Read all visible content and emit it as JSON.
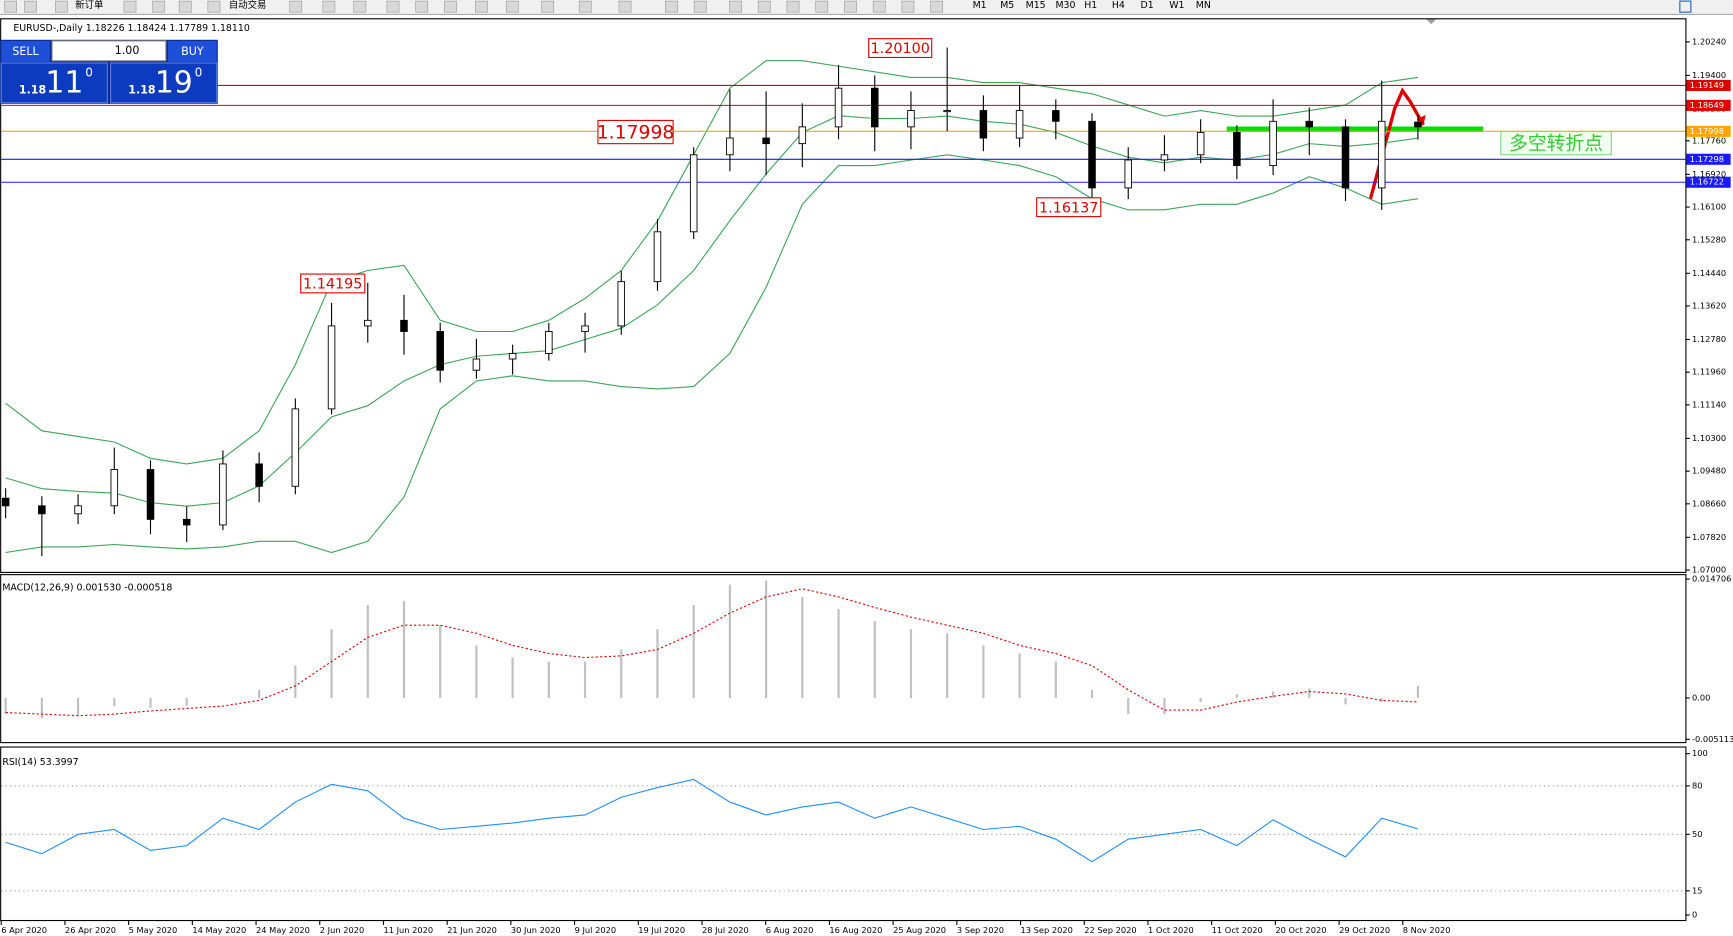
{
  "toolbar": {
    "order": "新订单",
    "auto": "自动交易",
    "timeframes": [
      "M1",
      "M5",
      "M15",
      "M30",
      "H1",
      "H4",
      "D1",
      "W1",
      "MN"
    ]
  },
  "trade_panel": {
    "sell": "SELL",
    "buy": "BUY",
    "lot": "1.00",
    "sell_price": {
      "prefix": "1.18",
      "big": "11",
      "sup": "0"
    },
    "buy_price": {
      "prefix": "1.18",
      "big": "19",
      "sup": "0"
    }
  },
  "chart_data": [
    {
      "type": "candlestick",
      "title": "EURUSD-,Daily  1.18226 1.18424 1.17789 1.18110",
      "ylim": [
        1.0694,
        1.2082
      ],
      "yticks": [
        {
          "value": 1.2024,
          "label": "1.20240"
        },
        {
          "value": 1.194,
          "label": "1.19400"
        },
        {
          "value": 1.1856,
          "label": "1.18560"
        },
        {
          "value": 1.1776,
          "label": "1.17760"
        },
        {
          "value": 1.1692,
          "label": "1.16920"
        },
        {
          "value": 1.161,
          "label": "1.16100"
        },
        {
          "value": 1.1528,
          "label": "1.15280"
        },
        {
          "value": 1.1444,
          "label": "1.14440"
        },
        {
          "value": 1.1362,
          "label": "1.13620"
        },
        {
          "value": 1.1278,
          "label": "1.12780"
        },
        {
          "value": 1.1196,
          "label": "1.11960"
        },
        {
          "value": 1.1114,
          "label": "1.11140"
        },
        {
          "value": 1.103,
          "label": "1.10300"
        },
        {
          "value": 1.0948,
          "label": "1.09480"
        },
        {
          "value": 1.0866,
          "label": "1.08660"
        },
        {
          "value": 1.0782,
          "label": "1.07820"
        },
        {
          "value": 1.07,
          "label": "1.07000"
        }
      ],
      "date_labels": [
        "6 Apr 2020",
        "26 Apr 2020",
        "5 May 2020",
        "14 May 2020",
        "24 May 2020",
        "2 Jun 2020",
        "11 Jun 2020",
        "21 Jun 2020",
        "30 Jun 2020",
        "9 Jul 2020",
        "19 Jul 2020",
        "28 Jul 2020",
        "6 Aug 2020",
        "16 Aug 2020",
        "25 Aug 2020",
        "3 Sep 2020",
        "13 Sep 2020",
        "22 Sep 2020",
        "1 Oct 2020",
        "11 Oct 2020",
        "20 Oct 2020",
        "29 Oct 2020",
        "8 Nov 2020"
      ],
      "open": [
        1.088,
        1.0861,
        1.0841,
        1.0861,
        1.0952,
        1.0827,
        1.0813,
        1.0966,
        1.091,
        1.1104,
        1.1312,
        1.1326,
        1.1298,
        1.1201,
        1.1229,
        1.1243,
        1.1298,
        1.1312,
        1.1423,
        1.1548,
        1.1741,
        1.1783,
        1.1769,
        1.1811,
        1.1908,
        1.1811,
        1.1852,
        1.1852,
        1.1783,
        1.1852,
        1.1825,
        1.1658,
        1.1728,
        1.1741,
        1.1797,
        1.1714,
        1.1825,
        1.1811,
        1.1658,
        1.1823
      ],
      "high": [
        1.0905,
        1.0885,
        1.089,
        1.1007,
        1.0975,
        1.086,
        1.1,
        1.0995,
        1.113,
        1.137,
        1.142,
        1.139,
        1.132,
        1.128,
        1.1265,
        1.132,
        1.1345,
        1.145,
        1.158,
        1.176,
        1.1905,
        1.19,
        1.187,
        1.1966,
        1.194,
        1.19,
        1.201,
        1.189,
        1.1915,
        1.188,
        1.1845,
        1.176,
        1.179,
        1.183,
        1.1815,
        1.188,
        1.186,
        1.183,
        1.1927,
        1.1842
      ],
      "low": [
        1.083,
        1.0735,
        1.0815,
        1.084,
        1.079,
        1.077,
        1.08,
        1.087,
        1.089,
        1.109,
        1.127,
        1.124,
        1.117,
        1.118,
        1.119,
        1.1225,
        1.1245,
        1.129,
        1.14,
        1.153,
        1.17,
        1.169,
        1.171,
        1.178,
        1.175,
        1.1755,
        1.18,
        1.175,
        1.176,
        1.178,
        1.1614,
        1.163,
        1.17,
        1.172,
        1.168,
        1.169,
        1.174,
        1.1625,
        1.1603,
        1.1779
      ],
      "close": [
        1.0861,
        1.0841,
        1.0861,
        1.0952,
        1.0827,
        1.0813,
        1.0966,
        1.091,
        1.1104,
        1.1312,
        1.1326,
        1.1298,
        1.1201,
        1.1229,
        1.1243,
        1.1298,
        1.1312,
        1.1423,
        1.1548,
        1.1741,
        1.1783,
        1.1769,
        1.1811,
        1.1908,
        1.1811,
        1.1852,
        1.1852,
        1.1783,
        1.1852,
        1.1825,
        1.1658,
        1.1728,
        1.1741,
        1.1797,
        1.1714,
        1.1825,
        1.1811,
        1.1658,
        1.1825,
        1.1811
      ],
      "bands": {
        "color": "#3aa657",
        "upper": [
          1.1118,
          1.1049,
          1.1035,
          1.1021,
          1.098,
          1.0966,
          1.098,
          1.1049,
          1.1215,
          1.1423,
          1.1451,
          1.1464,
          1.1326,
          1.1298,
          1.1298,
          1.1326,
          1.1381,
          1.1451,
          1.1575,
          1.1741,
          1.1908,
          1.1977,
          1.1977,
          1.1963,
          1.1949,
          1.1935,
          1.1935,
          1.1922,
          1.1922,
          1.1908,
          1.1894,
          1.1866,
          1.1838,
          1.1852,
          1.1838,
          1.1838,
          1.1852,
          1.1866,
          1.1922,
          1.1935
        ],
        "middle": [
          1.0931,
          1.0904,
          1.0897,
          1.0893,
          1.0869,
          1.086,
          1.0869,
          1.0911,
          1.0994,
          1.1084,
          1.1112,
          1.1174,
          1.1215,
          1.1236,
          1.1243,
          1.125,
          1.1278,
          1.1306,
          1.1365,
          1.1451,
          1.1576,
          1.1693,
          1.1797,
          1.1839,
          1.1832,
          1.1832,
          1.1838,
          1.1825,
          1.1818,
          1.1797,
          1.1763,
          1.1735,
          1.1721,
          1.1735,
          1.1728,
          1.1742,
          1.1769,
          1.1762,
          1.177,
          1.1783
        ],
        "lower": [
          1.0744,
          1.0758,
          1.0758,
          1.0764,
          1.0758,
          1.0753,
          1.0758,
          1.0772,
          1.0772,
          1.0744,
          1.0772,
          1.0883,
          1.1104,
          1.1174,
          1.1187,
          1.1174,
          1.1174,
          1.116,
          1.1154,
          1.116,
          1.1243,
          1.1409,
          1.1617,
          1.1714,
          1.1714,
          1.1728,
          1.1741,
          1.1728,
          1.1714,
          1.1686,
          1.1631,
          1.1603,
          1.1603,
          1.1617,
          1.1617,
          1.1645,
          1.1686,
          1.1658,
          1.1617,
          1.1631
        ]
      },
      "hlines": [
        {
          "value": 1.19149,
          "color": "#e00000"
        },
        {
          "value": 1.18649,
          "color": "#e00000"
        },
        {
          "value": 1.17998,
          "color": "#ffa500"
        },
        {
          "value": 1.17298,
          "color": "#1a1aff"
        },
        {
          "value": 1.16722,
          "color": "#1a1aff"
        }
      ],
      "annotations": [
        "1.20100",
        "1.17998",
        "1.16137",
        "1.14195",
        "多空转折点"
      ]
    },
    {
      "type": "bar",
      "title": "MACD(12,26,9) 0.001530 -0.000518",
      "ylim": [
        -0.005113,
        0.014706
      ],
      "yticks": [
        0.014706,
        {
          "value": 0,
          "label": "0.00"
        },
        -0.005113
      ],
      "values": [
        -0.002,
        -0.0025,
        -0.0022,
        -0.001,
        -0.0012,
        -0.001,
        0,
        0.001,
        0.004,
        0.0085,
        0.0115,
        0.012,
        0.009,
        0.0065,
        0.005,
        0.0045,
        0.0045,
        0.006,
        0.0085,
        0.0115,
        0.014,
        0.0145,
        0.0125,
        0.011,
        0.0095,
        0.0085,
        0.008,
        0.0065,
        0.0055,
        0.0045,
        0.001,
        -0.002,
        -0.002,
        -0.0005,
        0.0005,
        0.0008,
        0.0012,
        -0.0008,
        -0.0005,
        0.0015
      ],
      "color": "#c0c0c0",
      "signal": [
        -0.0018,
        -0.002,
        -0.0022,
        -0.002,
        -0.0016,
        -0.0013,
        -0.001,
        -0.0003,
        0.0015,
        0.0045,
        0.0075,
        0.009,
        0.009,
        0.008,
        0.0065,
        0.0055,
        0.005,
        0.0052,
        0.006,
        0.008,
        0.0105,
        0.0125,
        0.0135,
        0.0125,
        0.0112,
        0.01,
        0.009,
        0.008,
        0.0065,
        0.0055,
        0.004,
        0.001,
        -0.0015,
        -0.0015,
        -0.0005,
        0.0002,
        0.0008,
        0.0005,
        -0.0003,
        -0.0005
      ],
      "signal_color": "#e00000"
    },
    {
      "type": "line",
      "title": "RSI(14) 53.3997",
      "ylim": [
        0,
        100
      ],
      "yticks": [
        100,
        80,
        50,
        15,
        0
      ],
      "values": [
        45,
        38,
        50,
        53,
        40,
        43,
        60,
        53,
        70,
        81,
        77,
        60,
        53,
        55,
        57,
        60,
        62,
        73,
        79,
        84,
        70,
        62,
        67,
        70,
        60,
        67,
        60,
        53,
        55,
        47,
        33,
        47,
        50,
        53,
        43,
        59,
        47,
        36,
        60,
        53.3997
      ],
      "color": "#1e90ff"
    }
  ]
}
